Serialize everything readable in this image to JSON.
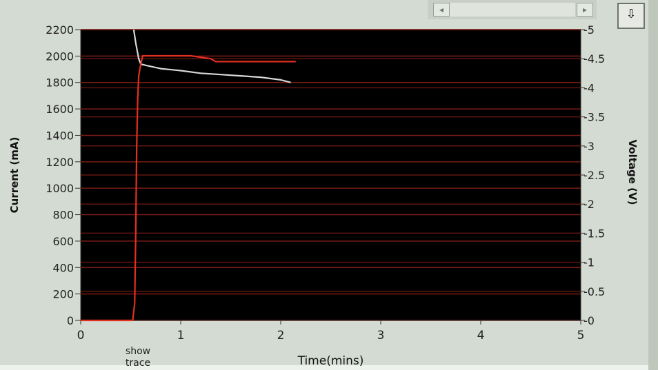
{
  "toolbar": {
    "scroll_left_icon": "arrow-left-icon",
    "scroll_right_icon": "arrow-right-icon",
    "export_icon": "arrow-down-icon",
    "scroll_left_glyph": "◂",
    "scroll_right_glyph": "▸",
    "export_glyph": "⇩"
  },
  "show_trace_label": "show trace",
  "colors": {
    "plot_background": "#000000",
    "gridline": "#7a1c14",
    "current_trace": "#d8d8d8",
    "voltage_trace": "#e23020",
    "window_background": "#d4dbd2"
  },
  "chart_data": {
    "type": "line",
    "xlabel": "Time(mins)",
    "ylabel": "Current (mA)",
    "y2label": "Voltage (V)",
    "xlim": [
      0,
      5
    ],
    "ylim": [
      0,
      2200
    ],
    "y2lim": [
      0,
      -5
    ],
    "x_ticks": [
      "0",
      "1",
      "2",
      "3",
      "4",
      "5"
    ],
    "y_ticks": [
      "0",
      "200",
      "400",
      "600",
      "800",
      "1000",
      "1200",
      "1400",
      "1600",
      "1800",
      "2000",
      "2200"
    ],
    "y2_ticks": [
      "-0",
      "-0.5",
      "-1",
      "-1.5",
      "-2",
      "-2.5",
      "-3",
      "-3.5",
      "-4",
      "-4.5",
      "-5"
    ],
    "grid": true,
    "series": [
      {
        "axis": "left",
        "color": "#d8d8d8",
        "x": [
          0.53,
          0.55,
          0.58,
          0.6,
          0.65,
          0.8,
          1.0,
          1.2,
          1.4,
          1.6,
          1.8,
          2.0,
          2.1
        ],
        "y": [
          2200,
          2100,
          1980,
          1940,
          1930,
          1905,
          1890,
          1870,
          1860,
          1850,
          1840,
          1820,
          1800
        ]
      },
      {
        "axis": "right",
        "color": "#e23020",
        "x": [
          0,
          0.2,
          0.4,
          0.52,
          0.54,
          0.55,
          0.56,
          0.57,
          0.58,
          0.6,
          0.62,
          0.65,
          0.8,
          1.0,
          1.1,
          1.3,
          1.35,
          1.5,
          1.8,
          2.0,
          2.15
        ],
        "y": [
          0,
          0,
          0,
          0,
          -0.3,
          -1.5,
          -3.0,
          -3.8,
          -4.2,
          -4.4,
          -4.55,
          -4.55,
          -4.55,
          -4.55,
          -4.55,
          -4.5,
          -4.45,
          -4.45,
          -4.45,
          -4.45,
          -4.45
        ]
      }
    ]
  }
}
